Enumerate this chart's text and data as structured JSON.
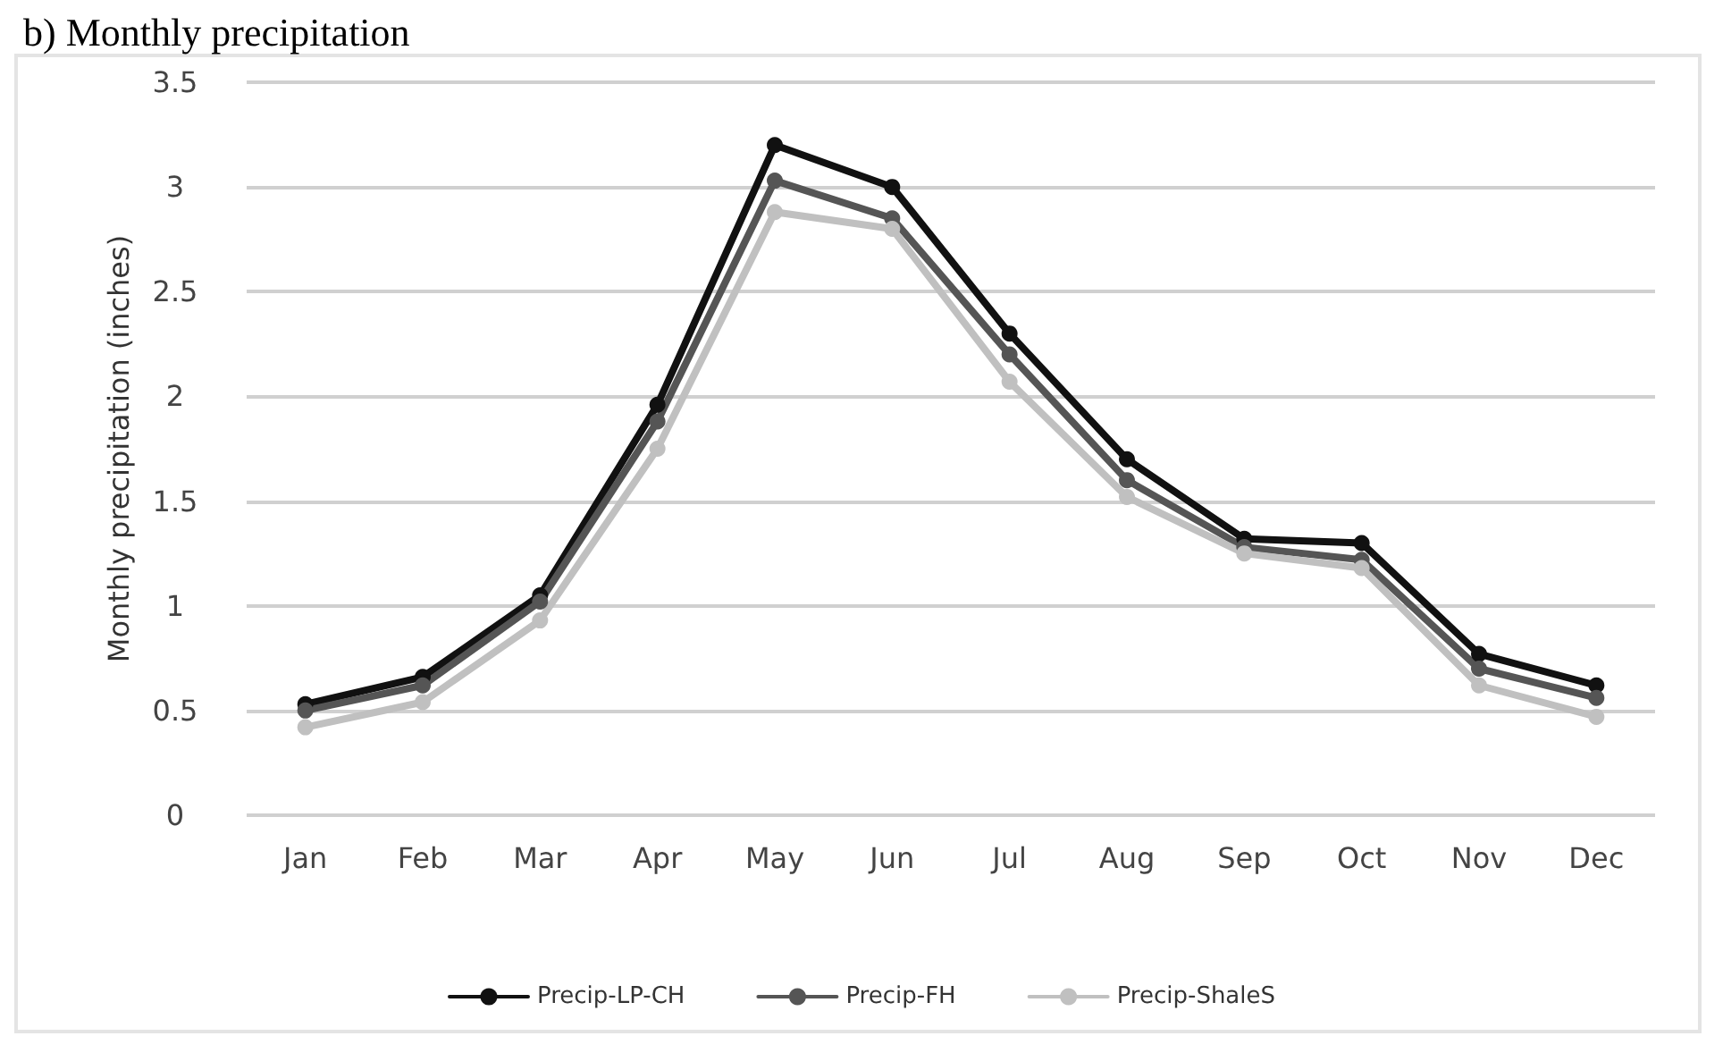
{
  "chart_data": {
    "type": "line",
    "title": "b) Monthly precipitation",
    "ylabel": "Monthly precipitation (inches)",
    "categories": [
      "Jan",
      "Feb",
      "Mar",
      "Apr",
      "May",
      "Jun",
      "Jul",
      "Aug",
      "Sep",
      "Oct",
      "Nov",
      "Dec"
    ],
    "series": [
      {
        "name": "Precip-LP-CH",
        "color": "#111111",
        "values": [
          0.53,
          0.66,
          1.05,
          1.96,
          3.2,
          3.0,
          2.3,
          1.7,
          1.32,
          1.3,
          0.77,
          0.62
        ]
      },
      {
        "name": "Precip-FH",
        "color": "#555555",
        "values": [
          0.5,
          0.62,
          1.02,
          1.88,
          3.03,
          2.85,
          2.2,
          1.6,
          1.28,
          1.22,
          0.7,
          0.56
        ]
      },
      {
        "name": "Precip-ShaleS",
        "color": "#c0c0c0",
        "values": [
          0.42,
          0.54,
          0.93,
          1.75,
          2.88,
          2.8,
          2.07,
          1.52,
          1.25,
          1.18,
          0.62,
          0.47
        ]
      }
    ],
    "ylim": [
      0,
      3.5
    ],
    "yticks": [
      0,
      0.5,
      1,
      1.5,
      2,
      2.5,
      3,
      3.5
    ],
    "grid": "y",
    "legend": "bottom",
    "marker": "circle",
    "line_style": "solid"
  }
}
